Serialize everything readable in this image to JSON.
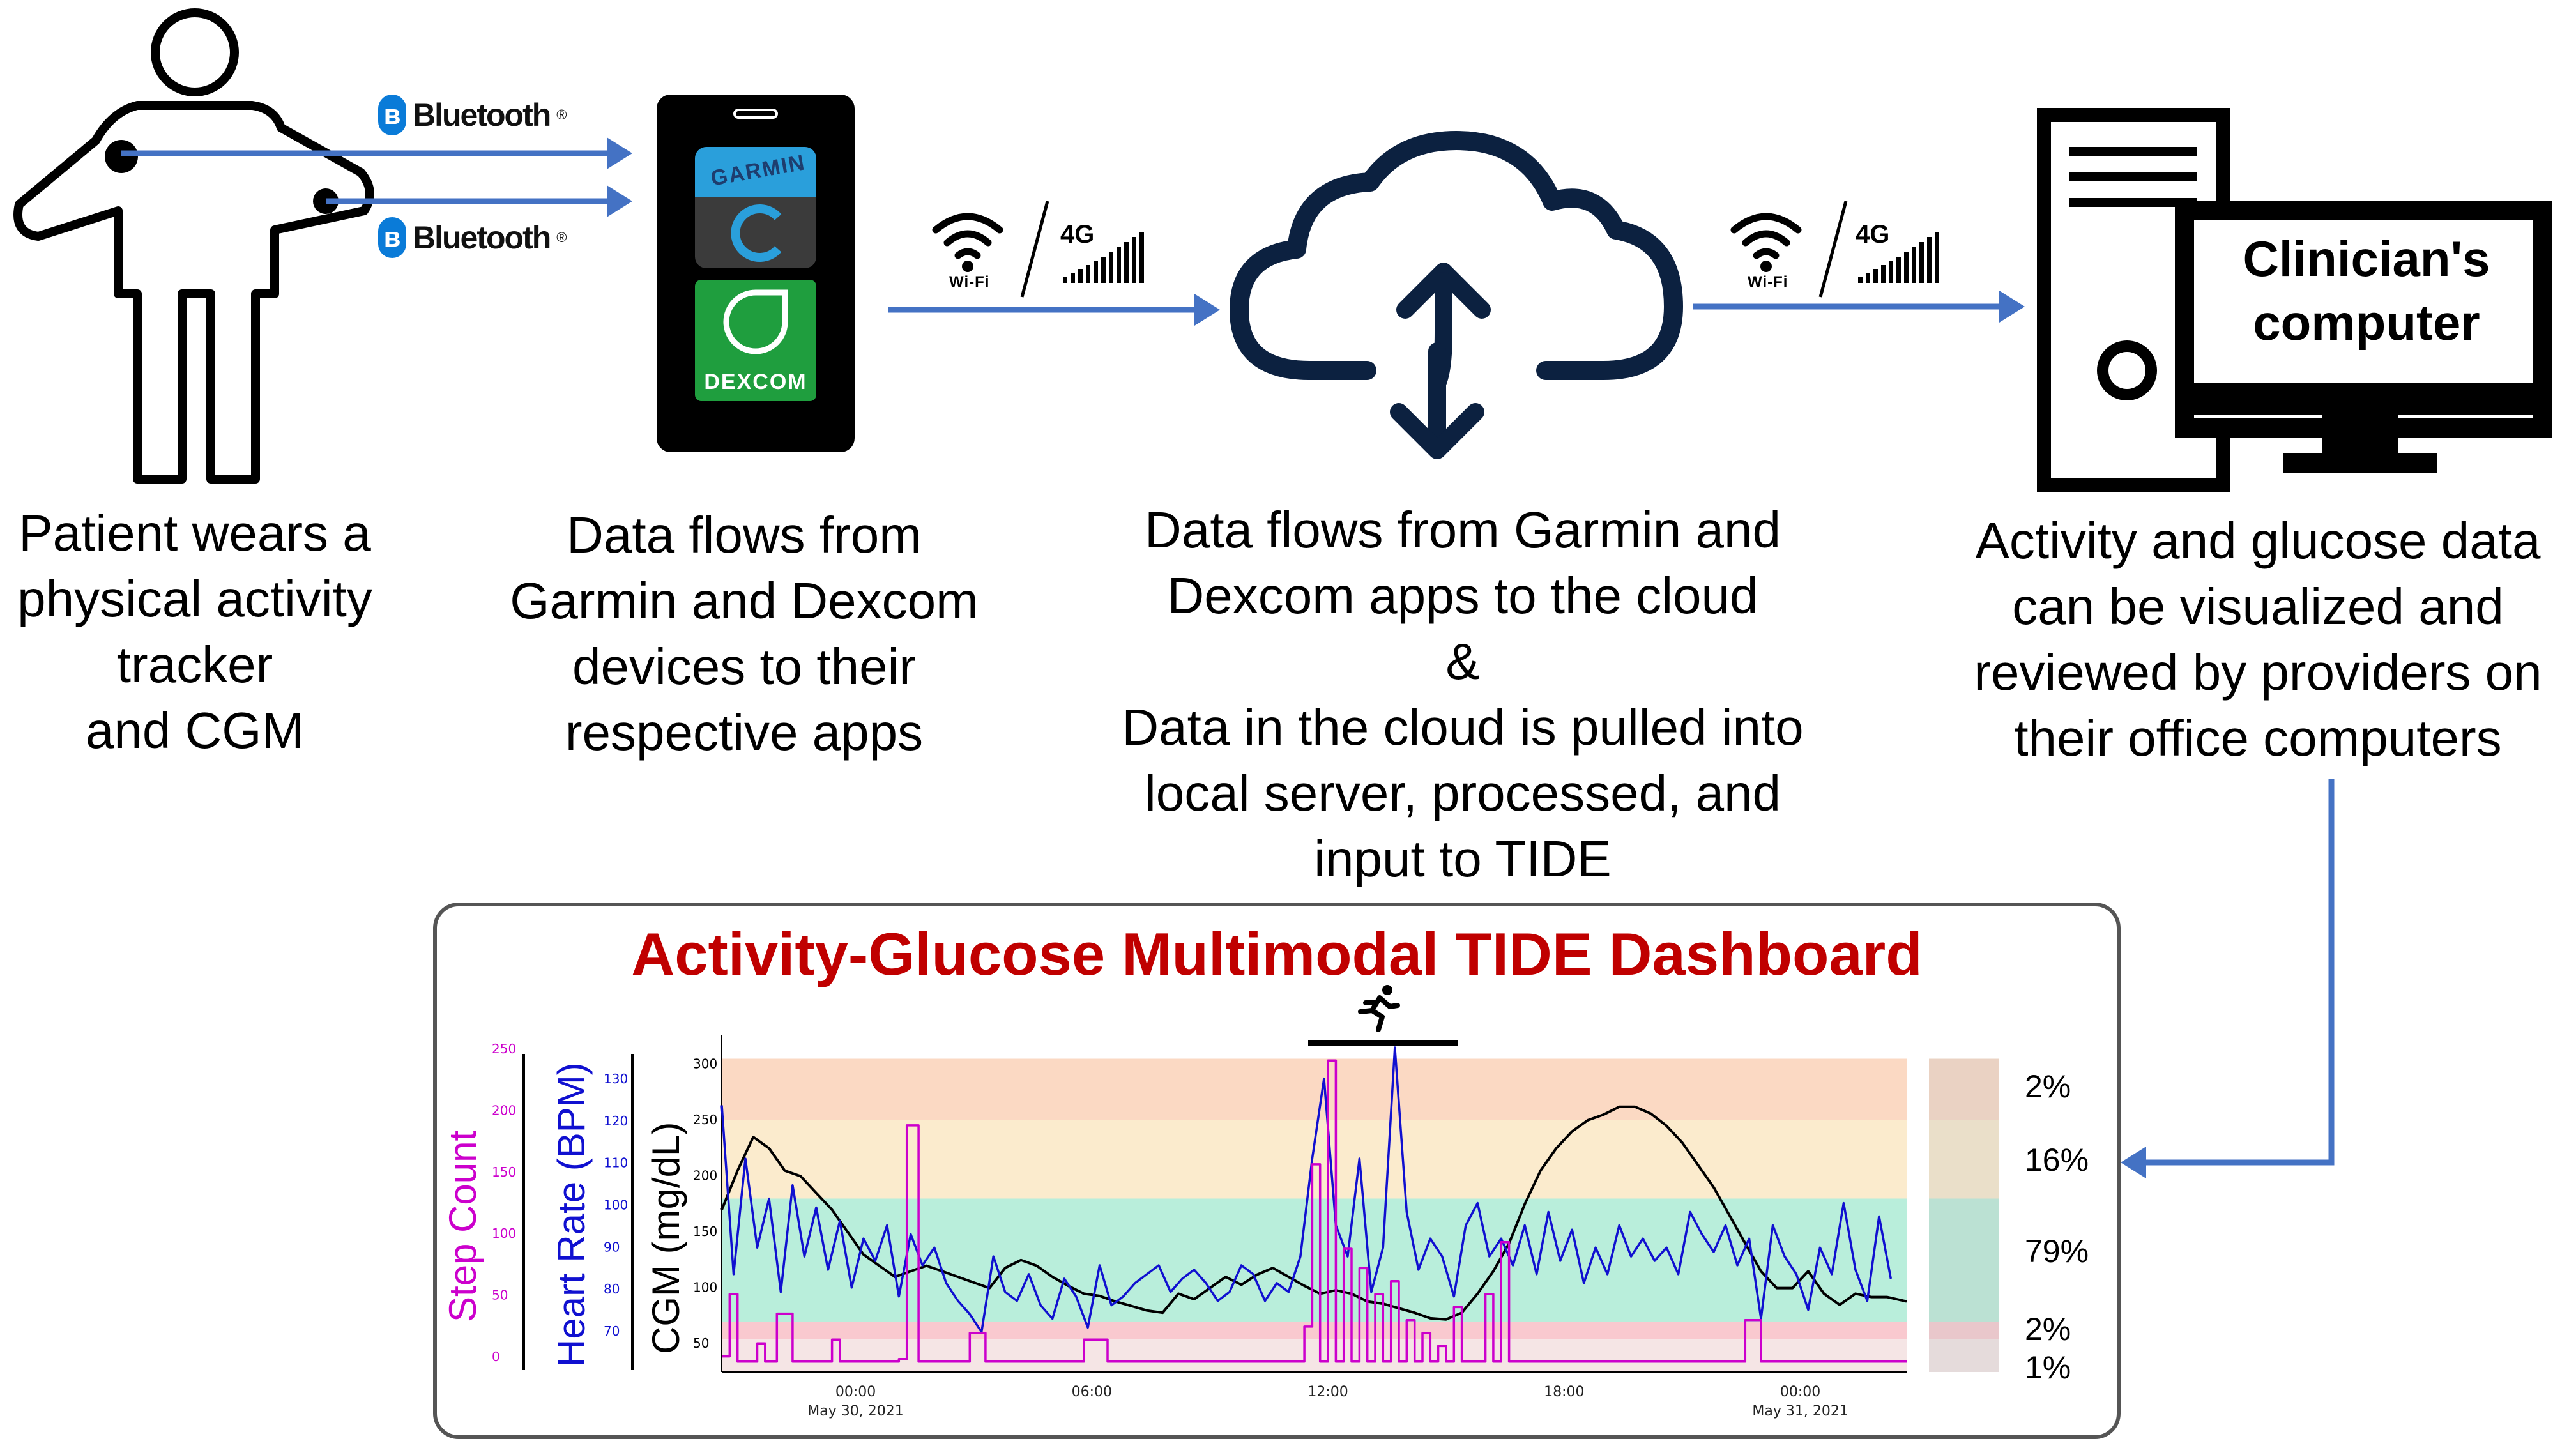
{
  "connections": {
    "bluetooth_top": "Bluetooth",
    "bluetooth_bottom": "Bluetooth",
    "wifi_left": "Wi-Fi",
    "fourg_left": "4G",
    "wifi_right": "Wi-Fi",
    "fourg_right": "4G",
    "bluetooth_badge": "ʙ"
  },
  "phone": {
    "garmin_label": "GARMIN",
    "dexcom_label": "DEXCOM"
  },
  "computer": {
    "screen_text": "Clinician's\ncomputer"
  },
  "captions": {
    "patient": "Patient wears a\nphysical activity\ntracker\nand CGM",
    "apps": "Data flows from\nGarmin and Dexcom\ndevices to their\nrespective apps",
    "cloud": "Data flows from Garmin and\nDexcom apps to the cloud\n&\nData in the cloud is pulled into\nlocal server, processed, and\ninput to TIDE",
    "clinician": "Activity and glucose data\ncan be visualized and\nreviewed by providers on\ntheir office computers"
  },
  "dashboard": {
    "title": "Activity-Glucose Multimodal TIDE Dashboard",
    "colors": {
      "title": "#c00000",
      "step": "#cc00cc",
      "heart": "#1010d0",
      "cgm": "#000000",
      "band_very_high": "#fbd9c3",
      "band_high": "#fbebcd",
      "band_target": "#b9eedb",
      "band_low": "#f9c9cf",
      "band_very_low": "#f5e5e5"
    },
    "icon": "running-person-icon"
  },
  "chart_data": {
    "type": "line",
    "title": "Activity-Glucose Multimodal TIDE Dashboard",
    "y_axes": [
      {
        "name": "Step Count",
        "ticks": [
          "0",
          "50",
          "100",
          "150",
          "200",
          "250"
        ],
        "range": [
          0,
          250
        ]
      },
      {
        "name": "Heart Rate (BPM)",
        "ticks": [
          "70",
          "80",
          "90",
          "100",
          "110",
          "120",
          "130"
        ],
        "range": [
          62,
          135
        ]
      },
      {
        "name": "CGM (mg/dL)",
        "ticks": [
          "50",
          "100",
          "150",
          "200",
          "250",
          "300"
        ],
        "range": [
          25,
          315
        ]
      }
    ],
    "x_ticks": [
      {
        "time": "00:00",
        "date": "May 30, 2021",
        "hour": 0
      },
      {
        "time": "06:00",
        "date": "",
        "hour": 6
      },
      {
        "time": "12:00",
        "date": "",
        "hour": 12
      },
      {
        "time": "18:00",
        "date": "",
        "hour": 18
      },
      {
        "time": "00:00",
        "date": "May 31, 2021",
        "hour": 24
      }
    ],
    "x_range_hours": [
      -3.4,
      26.7
    ],
    "bands": [
      {
        "from": 250,
        "to": 305,
        "color": "#fbd9c3"
      },
      {
        "from": 180,
        "to": 250,
        "color": "#fbebcd"
      },
      {
        "from": 70,
        "to": 180,
        "color": "#b9eedb"
      },
      {
        "from": 54,
        "to": 70,
        "color": "#f9c9cf"
      },
      {
        "from": 25,
        "to": 54,
        "color": "#f5e5e5"
      }
    ],
    "activity_hours": [
      11.5,
      15.3
    ],
    "series": [
      {
        "name": "CGM (mg/dL)",
        "axis": 2,
        "color": "#000000",
        "x": [
          -3.4,
          -3.0,
          -2.6,
          -2.2,
          -1.8,
          -1.4,
          -1.0,
          -0.6,
          -0.2,
          0.2,
          0.6,
          1.0,
          1.4,
          1.8,
          2.2,
          2.6,
          3.0,
          3.4,
          3.8,
          4.2,
          4.6,
          5.0,
          5.4,
          5.8,
          6.2,
          6.6,
          7.0,
          7.4,
          7.8,
          8.2,
          8.6,
          9.0,
          9.4,
          9.8,
          10.2,
          10.6,
          11.0,
          11.4,
          11.8,
          12.2,
          12.6,
          13.0,
          13.4,
          13.8,
          14.2,
          14.6,
          15.0,
          15.4,
          15.8,
          16.2,
          16.6,
          17.0,
          17.4,
          17.8,
          18.2,
          18.6,
          19.0,
          19.4,
          19.8,
          20.2,
          20.6,
          21.0,
          21.4,
          21.8,
          22.2,
          22.6,
          23.0,
          23.4,
          23.8,
          24.2,
          24.6,
          25.0,
          25.4,
          25.8,
          26.2,
          26.7
        ],
        "values": [
          170,
          205,
          235,
          225,
          205,
          200,
          185,
          170,
          150,
          130,
          120,
          110,
          115,
          120,
          115,
          110,
          105,
          100,
          118,
          125,
          120,
          110,
          102,
          95,
          93,
          88,
          84,
          80,
          78,
          95,
          90,
          100,
          110,
          103,
          112,
          118,
          110,
          102,
          95,
          98,
          95,
          88,
          86,
          82,
          78,
          73,
          72,
          78,
          95,
          115,
          140,
          175,
          205,
          225,
          240,
          250,
          255,
          262,
          262,
          256,
          245,
          230,
          210,
          190,
          165,
          140,
          115,
          100,
          100,
          115,
          95,
          85,
          95,
          92,
          92,
          88
        ]
      },
      {
        "name": "Heart Rate (BPM)",
        "axis": 1,
        "color": "#1010d0",
        "x": [
          -3.4,
          -3.1,
          -2.8,
          -2.5,
          -2.2,
          -1.9,
          -1.6,
          -1.3,
          -1.0,
          -0.7,
          -0.4,
          -0.1,
          0.2,
          0.5,
          0.8,
          1.1,
          1.4,
          1.7,
          2.0,
          2.3,
          2.6,
          2.9,
          3.2,
          3.5,
          3.8,
          4.1,
          4.4,
          4.7,
          5.0,
          5.3,
          5.6,
          5.9,
          6.2,
          6.5,
          6.8,
          7.1,
          7.4,
          7.7,
          8.0,
          8.3,
          8.6,
          8.9,
          9.2,
          9.5,
          9.8,
          10.1,
          10.4,
          10.7,
          11.0,
          11.3,
          11.6,
          11.9,
          12.2,
          12.5,
          12.8,
          13.1,
          13.4,
          13.7,
          14.0,
          14.3,
          14.6,
          14.9,
          15.2,
          15.5,
          15.8,
          16.1,
          16.4,
          16.7,
          17.0,
          17.3,
          17.6,
          17.9,
          18.2,
          18.5,
          18.8,
          19.1,
          19.4,
          19.7,
          20.0,
          20.3,
          20.6,
          20.9,
          21.2,
          21.5,
          21.8,
          22.1,
          22.4,
          22.7,
          23.0,
          23.3,
          23.6,
          23.9,
          24.2,
          24.5,
          24.8,
          25.1,
          25.4,
          25.7,
          26.0,
          26.3
        ],
        "values": [
          122,
          84,
          110,
          90,
          101,
          80,
          104,
          88,
          99,
          85,
          96,
          81,
          92,
          87,
          95,
          79,
          93,
          86,
          90,
          82,
          78,
          75,
          71,
          88,
          80,
          78,
          84,
          77,
          74,
          83,
          79,
          72,
          86,
          77,
          79,
          82,
          84,
          86,
          80,
          83,
          85,
          82,
          78,
          80,
          86,
          84,
          78,
          82,
          80,
          88,
          110,
          128,
          95,
          88,
          110,
          80,
          90,
          135,
          98,
          85,
          92,
          88,
          79,
          95,
          100,
          88,
          92,
          86,
          95,
          84,
          98,
          87,
          94,
          82,
          90,
          84,
          95,
          88,
          92,
          87,
          90,
          84,
          98,
          93,
          89,
          95,
          86,
          92,
          74,
          95,
          88,
          84,
          76,
          90,
          84,
          100,
          85,
          78,
          97,
          83
        ]
      },
      {
        "name": "Step Count",
        "axis": 0,
        "color": "#cc00cc",
        "x": [
          -3.4,
          -3.2,
          -3.0,
          -2.5,
          -2.3,
          -2.0,
          -1.6,
          -1.2,
          -0.8,
          -0.6,
          -0.4,
          0.0,
          0.5,
          1.1,
          1.3,
          1.6,
          2.0,
          2.4,
          2.9,
          3.3,
          4.0,
          4.6,
          5.2,
          5.8,
          6.4,
          7.0,
          7.8,
          8.6,
          9.4,
          10.2,
          10.8,
          11.2,
          11.4,
          11.6,
          11.8,
          12.0,
          12.2,
          12.4,
          12.6,
          12.8,
          13.0,
          13.2,
          13.4,
          13.6,
          13.8,
          14.0,
          14.2,
          14.4,
          14.6,
          14.8,
          15.0,
          15.2,
          15.4,
          15.6,
          15.8,
          16.0,
          16.2,
          16.4,
          16.6,
          16.8,
          17.0,
          17.4,
          18.0,
          19.0,
          20.0,
          21.0,
          22.0,
          22.6,
          23.0,
          23.6,
          24.2,
          25.0,
          25.6,
          26.2,
          26.7
        ],
        "values": [
          12,
          60,
          8,
          22,
          8,
          45,
          8,
          8,
          8,
          25,
          8,
          8,
          8,
          10,
          190,
          8,
          8,
          8,
          30,
          8,
          8,
          8,
          8,
          25,
          8,
          8,
          8,
          8,
          8,
          8,
          8,
          8,
          35,
          160,
          8,
          240,
          8,
          95,
          8,
          80,
          8,
          60,
          8,
          70,
          8,
          40,
          8,
          30,
          8,
          20,
          8,
          50,
          8,
          8,
          8,
          60,
          8,
          100,
          8,
          8,
          8,
          8,
          8,
          8,
          8,
          8,
          8,
          40,
          8,
          8,
          8,
          8,
          8,
          8,
          8
        ]
      }
    ],
    "percentages": [
      "2%",
      "16%",
      "79%",
      "2%",
      "1%"
    ]
  }
}
